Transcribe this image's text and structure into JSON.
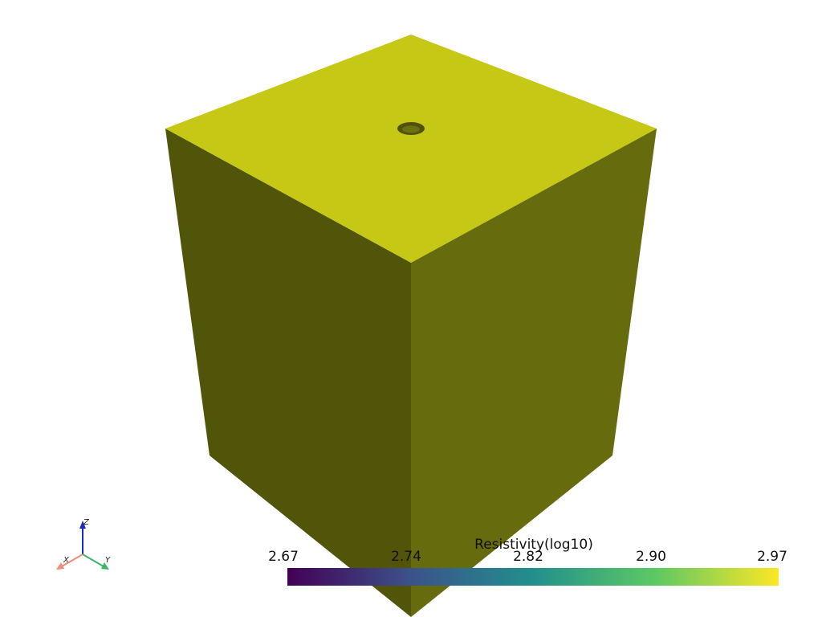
{
  "scalar_bar": {
    "title": "Resistivity(log10)",
    "ticks": [
      "2.67",
      "2.74",
      "2.82",
      "2.90",
      "2.97"
    ],
    "colormap": [
      "#440154",
      "#3b528b",
      "#21908d",
      "#5dc963",
      "#fde725"
    ]
  },
  "mesh": {
    "top_color": "#c5c815",
    "left_color": "#51550a",
    "right_color": "#666c0e",
    "hole_color": "#4e520c"
  },
  "axes": {
    "x_label": "X",
    "y_label": "Y",
    "z_label": "Z",
    "x_color": "#f08c78",
    "y_color": "#3cb46e",
    "z_color": "#1e28c8"
  }
}
